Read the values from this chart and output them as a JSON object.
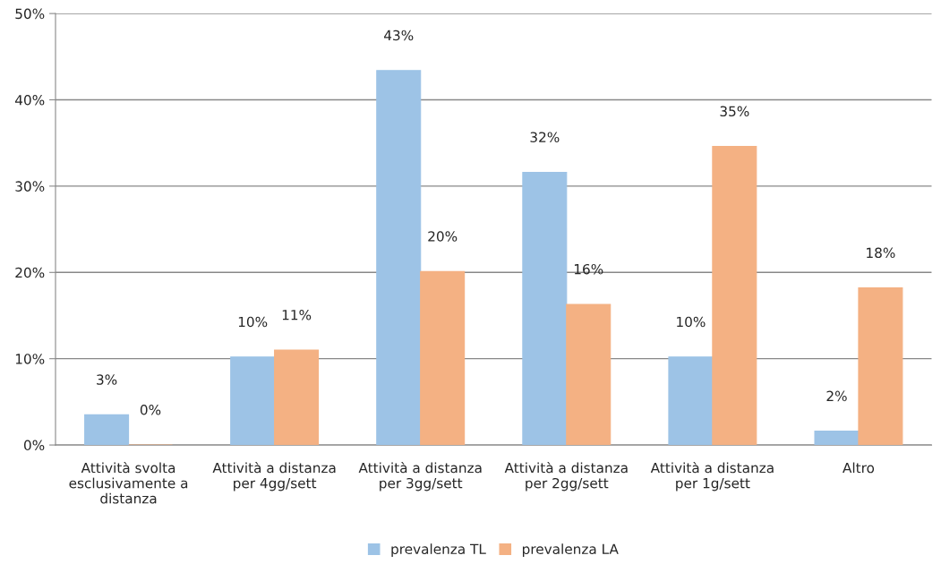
{
  "chart_data": {
    "type": "bar",
    "categories": [
      "Attività svolta\nesclusivamente a\ndistanza",
      "Attività a distanza\nper 4gg/sett",
      "Attività a distanza\nper 3gg/sett",
      "Attività a distanza\nper 2gg/sett",
      "Attività a distanza\nper 1g/sett",
      "Altro"
    ],
    "series": [
      {
        "name": "prevalenza TL",
        "color": "#9dc3e6",
        "values": [
          3.5,
          10.2,
          43.4,
          31.6,
          10.2,
          1.6
        ],
        "value_labels": [
          "3%",
          "10%",
          "43%",
          "32%",
          "10%",
          "2%"
        ]
      },
      {
        "name": "prevalenza LA",
        "color": "#f4b183",
        "values": [
          0,
          11,
          20.1,
          16.3,
          34.6,
          18.2
        ],
        "value_labels": [
          "0%",
          "11%",
          "20%",
          "16%",
          "35%",
          "18%"
        ]
      }
    ],
    "ylim": [
      0,
      50
    ],
    "yticks": [
      {
        "value": 0,
        "label": "0%"
      },
      {
        "value": 10,
        "label": "10%"
      },
      {
        "value": 20,
        "label": "20%"
      },
      {
        "value": 30,
        "label": "30%"
      },
      {
        "value": 40,
        "label": "40%"
      },
      {
        "value": 50,
        "label": "50%"
      }
    ],
    "grid": "y",
    "legend": "bottom"
  }
}
